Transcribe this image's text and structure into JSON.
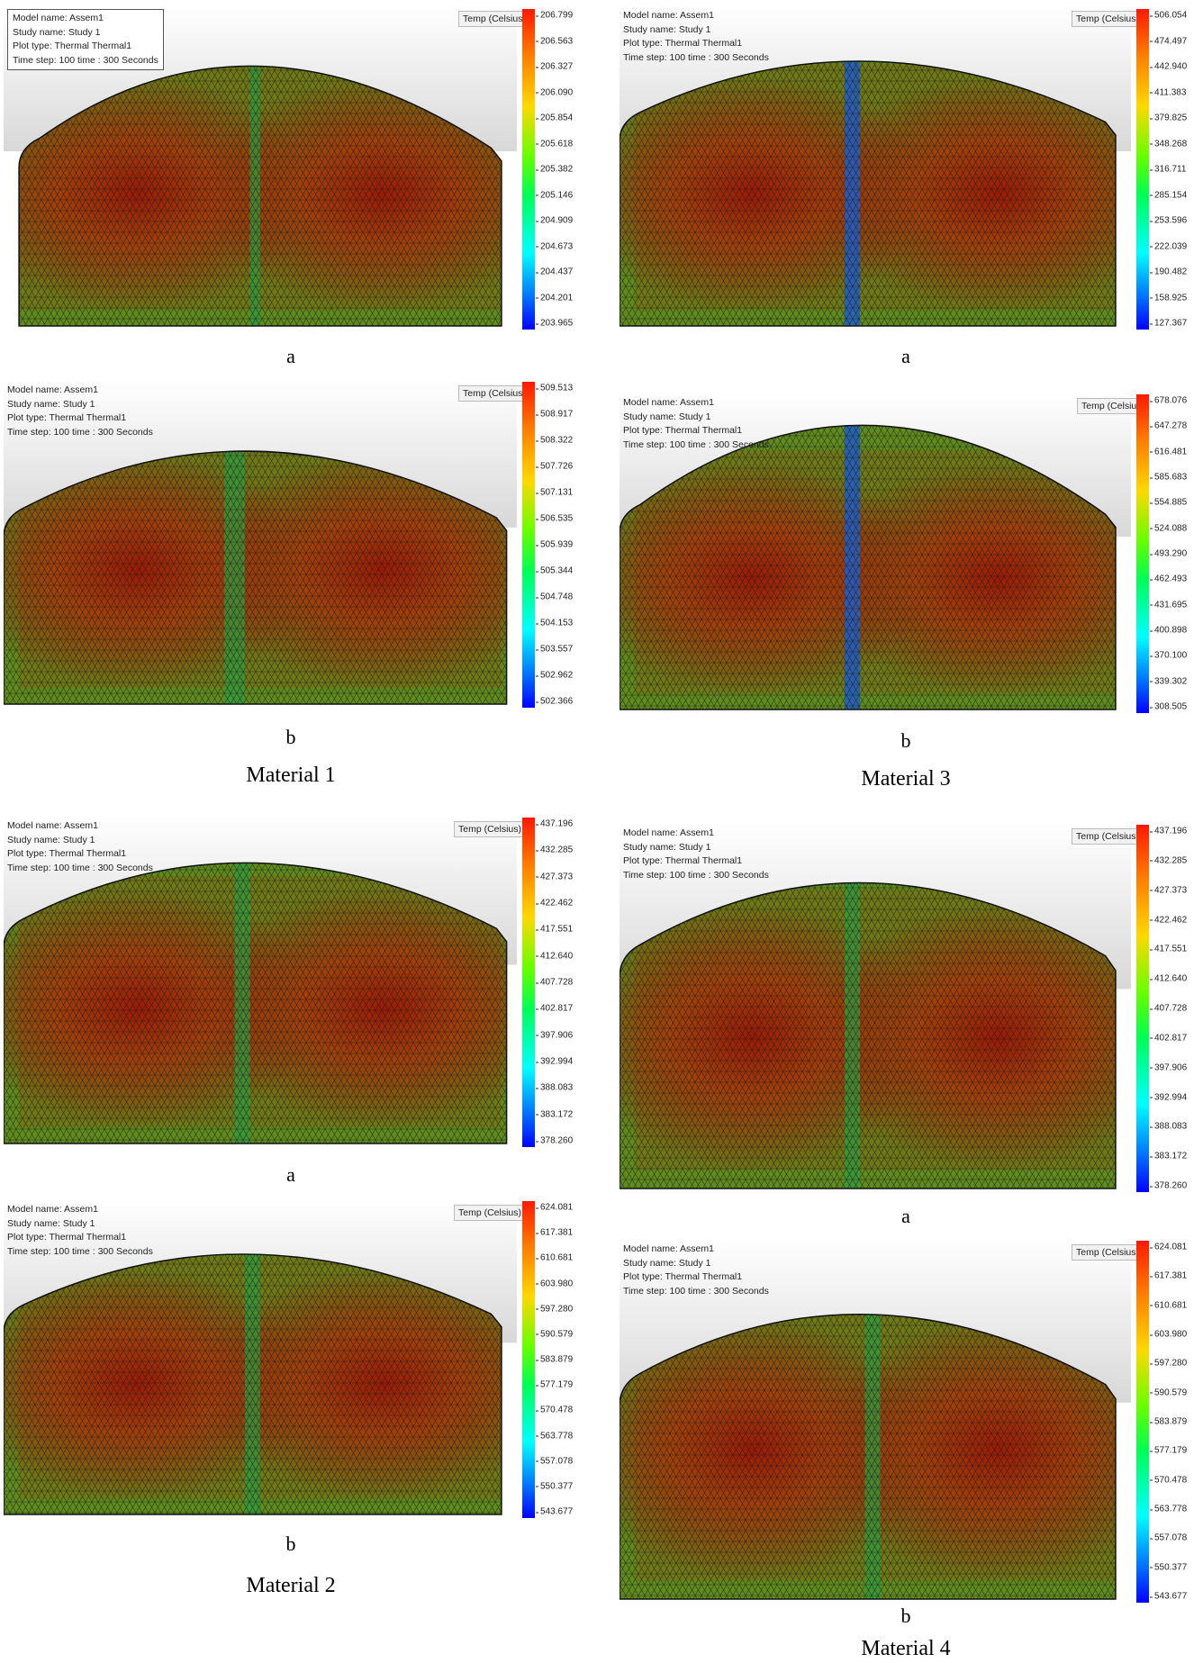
{
  "panels": [
    {
      "id": "m1a",
      "model": "Model name: Assem1",
      "study": "Study name: Study 1",
      "plot": "Plot type: Thermal Thermal1",
      "time": "Time step: 100   time : 300 Seconds",
      "legend_title": "Temp (Celsius)",
      "ticks": [
        "206.799",
        "206.563",
        "206.327",
        "206.090",
        "205.854",
        "205.618",
        "205.382",
        "205.146",
        "204.909",
        "204.673",
        "204.437",
        "204.201",
        "203.965"
      ]
    },
    {
      "id": "m3a",
      "model": "Model name: Assem1",
      "study": "Study name: Study 1",
      "plot": "Plot type: Thermal Thermal1",
      "time": "Time step: 100   time : 300 Seconds",
      "legend_title": "Temp (Celsius)",
      "ticks": [
        "506.054",
        "474.497",
        "442.940",
        "411.383",
        "379.825",
        "348.268",
        "316.711",
        "285.154",
        "253.596",
        "222.039",
        "190.482",
        "158.925",
        "127.367"
      ]
    },
    {
      "id": "m1b",
      "model": "Model name: Assem1",
      "study": "Study name: Study 1",
      "plot": "Plot type: Thermal Thermal1",
      "time": "Time step: 100   time : 300 Seconds",
      "legend_title": "Temp (Celsius)",
      "ticks": [
        "509.513",
        "508.917",
        "508.322",
        "507.726",
        "507.131",
        "506.535",
        "505.939",
        "505.344",
        "504.748",
        "504.153",
        "503.557",
        "502.962",
        "502.366"
      ]
    },
    {
      "id": "m3b",
      "model": "Model name: Assem1",
      "study": "Study name: Study 1",
      "plot": "Plot type: Thermal Thermal1",
      "time": "Time step: 100   time : 300 Seconds",
      "legend_title": "Temp (Celsius)",
      "ticks": [
        "678.076",
        "647.278",
        "616.481",
        "585.683",
        "554.885",
        "524.088",
        "493.290",
        "462.493",
        "431.695",
        "400.898",
        "370.100",
        "339.302",
        "308.505"
      ]
    },
    {
      "id": "m2a",
      "model": "Model name: Assem1",
      "study": "Study name: Study 1",
      "plot": "Plot type: Thermal Thermal1",
      "time": "Time step: 100   time : 300 Seconds",
      "legend_title": "Temp (Celsius)",
      "ticks": [
        "437.196",
        "432.285",
        "427.373",
        "422.462",
        "417.551",
        "412.640",
        "407.728",
        "402.817",
        "397.906",
        "392.994",
        "388.083",
        "383.172",
        "378.260"
      ]
    },
    {
      "id": "m4a",
      "model": "Model name: Assem1",
      "study": "Study name: Study 1",
      "plot": "Plot type: Thermal Thermal1",
      "time": "Time step: 100   time : 300 Seconds",
      "legend_title": "Temp (Celsius)",
      "ticks": [
        "437.196",
        "432.285",
        "427.373",
        "422.462",
        "417.551",
        "412.640",
        "407.728",
        "402.817",
        "397.906",
        "392.994",
        "388.083",
        "383.172",
        "378.260"
      ]
    },
    {
      "id": "m2b",
      "model": "Model name: Assem1",
      "study": "Study name: Study 1",
      "plot": "Plot type: Thermal Thermal1",
      "time": "Time step: 100   time : 300 Seconds",
      "legend_title": "Temp (Celsius)",
      "ticks": [
        "624.081",
        "617.381",
        "610.681",
        "603.980",
        "597.280",
        "590.579",
        "583.879",
        "577.179",
        "570.478",
        "563.778",
        "557.078",
        "550.377",
        "543.677"
      ]
    },
    {
      "id": "m4b",
      "model": "Model name: Assem1",
      "study": "Study name: Study 1",
      "plot": "Plot type: Thermal Thermal1",
      "time": "Time step: 100   time : 300 Seconds",
      "legend_title": "Temp (Celsius)",
      "ticks": [
        "624.081",
        "617.381",
        "610.681",
        "603.980",
        "597.280",
        "590.579",
        "583.879",
        "577.179",
        "570.478",
        "563.778",
        "557.078",
        "550.377",
        "543.677"
      ]
    }
  ],
  "labels": {
    "m1a": "a",
    "m3a": "a",
    "m1b": "b",
    "m3b": "b",
    "m2a": "a",
    "m4a": "a",
    "m2b": "b",
    "m4b": "b",
    "material1": "Material 1",
    "material2": "Material 2",
    "material3": "Material 3",
    "material4": "Material 4"
  },
  "colors": {
    "hot": "#9a1a06",
    "warm": "#7f6a10",
    "cool_edge": "#3a9a2a",
    "mesh_line": "#1a1a1a",
    "colorbar_top": "#ff1800",
    "colorbar_bottom": "#0000ff"
  }
}
